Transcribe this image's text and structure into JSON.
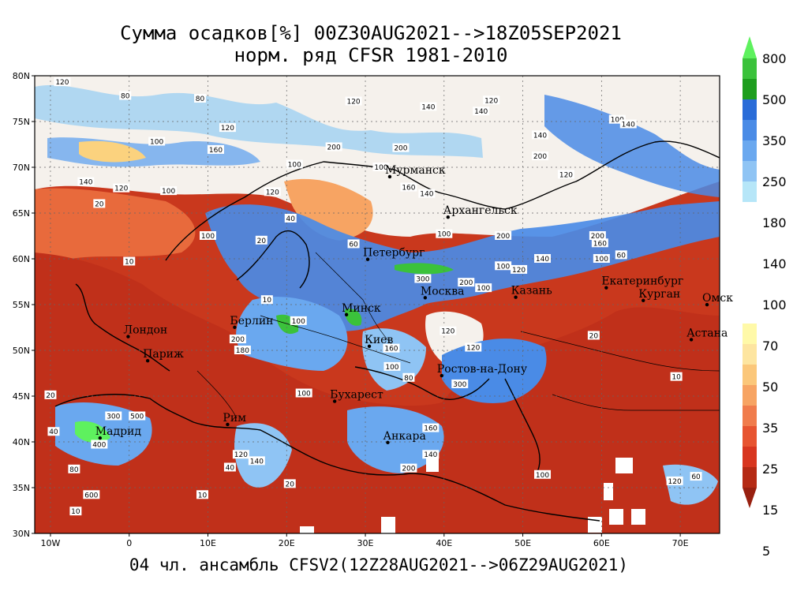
{
  "header": {
    "title_line1": "Сумма осадков[%] 00Z30AUG2021-->18Z05SEP2021",
    "title_line2": "норм. ряд CFSR 1981-2010"
  },
  "footer": {
    "text": "04 чл. ансамбль CFSV2(12Z28AUG2021-->06Z29AUG2021)"
  },
  "map": {
    "lat_labels": [
      "80N",
      "75N",
      "70N",
      "65N",
      "60N",
      "55N",
      "50N",
      "45N",
      "40N",
      "35N",
      "30N"
    ],
    "lon_labels": [
      "10W",
      "0",
      "10E",
      "20E",
      "30E",
      "40E",
      "50E",
      "60E",
      "70E"
    ],
    "cities": [
      {
        "name": "Мурманск",
        "lon": 33.1,
        "lat": 68.97
      },
      {
        "name": "Архангельск",
        "lon": 40.5,
        "lat": 64.55
      },
      {
        "name": "Петербург",
        "lon": 30.3,
        "lat": 59.94
      },
      {
        "name": "Москва",
        "lon": 37.6,
        "lat": 55.75
      },
      {
        "name": "Казань",
        "lon": 49.1,
        "lat": 55.8
      },
      {
        "name": "Екатеринбург",
        "lon": 60.6,
        "lat": 56.84
      },
      {
        "name": "Курган",
        "lon": 65.3,
        "lat": 55.45
      },
      {
        "name": "Омск",
        "lon": 73.4,
        "lat": 54.99
      },
      {
        "name": "Астана",
        "lon": 71.4,
        "lat": 51.17
      },
      {
        "name": "Минск",
        "lon": 27.6,
        "lat": 53.9
      },
      {
        "name": "Берлин",
        "lon": 13.4,
        "lat": 52.52
      },
      {
        "name": "Лондон",
        "lon": -0.13,
        "lat": 51.5
      },
      {
        "name": "Париж",
        "lon": 2.35,
        "lat": 48.86
      },
      {
        "name": "Киев",
        "lon": 30.5,
        "lat": 50.45
      },
      {
        "name": "Ростов-на-Дону",
        "lon": 39.7,
        "lat": 47.24
      },
      {
        "name": "Бухарест",
        "lon": 26.1,
        "lat": 44.43
      },
      {
        "name": "Рим",
        "lon": 12.5,
        "lat": 41.9
      },
      {
        "name": "Мадрид",
        "lon": -3.7,
        "lat": 40.42
      },
      {
        "name": "Анкара",
        "lon": 32.85,
        "lat": 39.93
      }
    ],
    "contour_labels": [
      {
        "t": "120",
        "lon": -8.5,
        "lat": 79.3
      },
      {
        "t": "80",
        "lon": -0.5,
        "lat": 77.8
      },
      {
        "t": "80",
        "lon": 9,
        "lat": 77.5
      },
      {
        "t": "120",
        "lon": 28.5,
        "lat": 77.2
      },
      {
        "t": "140",
        "lon": 44.7,
        "lat": 76.1
      },
      {
        "t": "120",
        "lon": 46,
        "lat": 77.3
      },
      {
        "t": "140",
        "lon": 38,
        "lat": 76.6
      },
      {
        "t": "100",
        "lon": 62,
        "lat": 75.2
      },
      {
        "t": "140",
        "lon": 63.4,
        "lat": 74.7
      },
      {
        "t": "120",
        "lon": 12.5,
        "lat": 74.3
      },
      {
        "t": "100",
        "lon": 3.5,
        "lat": 72.8
      },
      {
        "t": "160",
        "lon": 11,
        "lat": 71.9
      },
      {
        "t": "200",
        "lon": 26,
        "lat": 72.2
      },
      {
        "t": "200",
        "lon": 34.5,
        "lat": 72.1
      },
      {
        "t": "140",
        "lon": 52.2,
        "lat": 73.5
      },
      {
        "t": "200",
        "lon": 52.2,
        "lat": 71.2
      },
      {
        "t": "100",
        "lon": 21,
        "lat": 70.3
      },
      {
        "t": "100",
        "lon": 32,
        "lat": 70
      },
      {
        "t": "120",
        "lon": 55.5,
        "lat": 69.2
      },
      {
        "t": "140",
        "lon": -5.5,
        "lat": 68.4
      },
      {
        "t": "120",
        "lon": -1,
        "lat": 67.7
      },
      {
        "t": "100",
        "lon": 5,
        "lat": 67.4
      },
      {
        "t": "120",
        "lon": 18.2,
        "lat": 67.3
      },
      {
        "t": "160",
        "lon": 35.5,
        "lat": 67.8
      },
      {
        "t": "140",
        "lon": 37.8,
        "lat": 67.1
      },
      {
        "t": "20",
        "lon": -3.8,
        "lat": 66
      },
      {
        "t": "40",
        "lon": 20.5,
        "lat": 64.4
      },
      {
        "t": "60",
        "lon": 28.5,
        "lat": 61.6
      },
      {
        "t": "100",
        "lon": 40,
        "lat": 62.7
      },
      {
        "t": "200",
        "lon": 47.5,
        "lat": 62.5
      },
      {
        "t": "200",
        "lon": 59.5,
        "lat": 62.5
      },
      {
        "t": "160",
        "lon": 59.8,
        "lat": 61.7
      },
      {
        "t": "100",
        "lon": 10,
        "lat": 62.5
      },
      {
        "t": "20",
        "lon": 16.8,
        "lat": 62
      },
      {
        "t": "10",
        "lon": 0,
        "lat": 59.7
      },
      {
        "t": "100",
        "lon": 47.5,
        "lat": 59.2
      },
      {
        "t": "140",
        "lon": 52.5,
        "lat": 60
      },
      {
        "t": "120",
        "lon": 49.5,
        "lat": 58.8
      },
      {
        "t": "60",
        "lon": 62.5,
        "lat": 60.4
      },
      {
        "t": "100",
        "lon": 60.0,
        "lat": 60.0
      },
      {
        "t": "300",
        "lon": 37.3,
        "lat": 57.8
      },
      {
        "t": "200",
        "lon": 42.8,
        "lat": 57.4
      },
      {
        "t": "100",
        "lon": 45,
        "lat": 56.8
      },
      {
        "t": "10",
        "lon": 17.5,
        "lat": 55.5
      },
      {
        "t": "120",
        "lon": 40.5,
        "lat": 52.1
      },
      {
        "t": "200",
        "lon": 13.8,
        "lat": 51.2
      },
      {
        "t": "100",
        "lon": 21.5,
        "lat": 53.2
      },
      {
        "t": "20",
        "lon": 59,
        "lat": 51.6
      },
      {
        "t": "180",
        "lon": 14.4,
        "lat": 50
      },
      {
        "t": "160",
        "lon": 33.3,
        "lat": 50.2
      },
      {
        "t": "120",
        "lon": 43.7,
        "lat": 50.3
      },
      {
        "t": "100",
        "lon": 33.4,
        "lat": 48.2
      },
      {
        "t": "80",
        "lon": 35.5,
        "lat": 47
      },
      {
        "t": "10",
        "lon": 69.5,
        "lat": 47.1
      },
      {
        "t": "300",
        "lon": 42,
        "lat": 46.3
      },
      {
        "t": "100",
        "lon": 22.2,
        "lat": 45.3
      },
      {
        "t": "20",
        "lon": -10,
        "lat": 45.1
      },
      {
        "t": "300",
        "lon": -2,
        "lat": 42.8
      },
      {
        "t": "500",
        "lon": 1,
        "lat": 42.8
      },
      {
        "t": "400",
        "lon": -3.8,
        "lat": 39.7
      },
      {
        "t": "40",
        "lon": -9.6,
        "lat": 41.1
      },
      {
        "t": "160",
        "lon": 38.3,
        "lat": 41.5
      },
      {
        "t": "140",
        "lon": 38.3,
        "lat": 38.6
      },
      {
        "t": "200",
        "lon": 35.5,
        "lat": 37.1
      },
      {
        "t": "100",
        "lon": 52.5,
        "lat": 36.4
      },
      {
        "t": "120",
        "lon": 69.3,
        "lat": 35.7
      },
      {
        "t": "60",
        "lon": 72,
        "lat": 36.2
      },
      {
        "t": "80",
        "lon": -7,
        "lat": 37
      },
      {
        "t": "10",
        "lon": -6.8,
        "lat": 32.4
      },
      {
        "t": "10",
        "lon": 9.3,
        "lat": 34.2
      },
      {
        "t": "20",
        "lon": 20.4,
        "lat": 35.4
      },
      {
        "t": "40",
        "lon": 12.8,
        "lat": 37.2
      },
      {
        "t": "120",
        "lon": 14.2,
        "lat": 38.6
      },
      {
        "t": "140",
        "lon": 16.2,
        "lat": 37.9
      },
      {
        "t": "600",
        "lon": -4.8,
        "lat": 34.2
      }
    ]
  },
  "legend": {
    "labels": [
      "800",
      "500",
      "350",
      "250",
      "180",
      "140",
      "100",
      "70",
      "50",
      "35",
      "25",
      "15",
      "5"
    ],
    "upper_colors": [
      "#5ef15e",
      "#3bc23b",
      "#1e9e1e",
      "#2a6cd8",
      "#4a8be6",
      "#6aa8ef",
      "#8fc4f4",
      "#b6e6f8"
    ],
    "lower_colors": [
      "#fff9a8",
      "#fde5a0",
      "#fbc77a",
      "#f7a463",
      "#f07c4c",
      "#e75430",
      "#d8361f",
      "#b52a14",
      "#982010"
    ]
  }
}
